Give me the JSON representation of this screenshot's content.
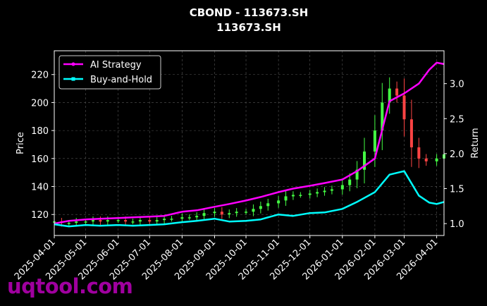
{
  "chart_data": {
    "type": "line",
    "title": "CBOND - 113673.SH",
    "subtitle": "113673.SH",
    "ylabel_left": "Price",
    "ylabel_right": "Return",
    "x_tick_labels": [
      "2025-04-01",
      "2025-05-01",
      "2025-06-01",
      "2025-07-01",
      "2025-08-01",
      "2025-09-01",
      "2025-10-01",
      "2025-11-01",
      "2025-12-01",
      "2026-01-01",
      "2026-02-01",
      "2026-03-01",
      "2026-04-01"
    ],
    "xlim": [
      "2025-04-01",
      "2026-04-08"
    ],
    "ylim_left": [
      105,
      237
    ],
    "yticks_left": [
      120,
      140,
      160,
      180,
      200,
      220
    ],
    "ylim_right": [
      0.83,
      3.47
    ],
    "yticks_right": [
      "1.0",
      "1.5",
      "2.0",
      "2.5",
      "3.0"
    ],
    "grid": true,
    "legend_position": "top-left",
    "colors": {
      "ai": "#ff00ff",
      "bh": "#00ffff",
      "up": "#44ff44",
      "down": "#ff4444",
      "grid": "#555555",
      "watermark": "#a0009f"
    },
    "candles_close": [
      [
        "2025-04-01",
        115
      ],
      [
        "2025-04-08",
        114
      ],
      [
        "2025-04-15",
        114
      ],
      [
        "2025-04-22",
        115
      ],
      [
        "2025-05-01",
        115
      ],
      [
        "2025-05-08",
        116
      ],
      [
        "2025-05-15",
        115
      ],
      [
        "2025-05-22",
        116
      ],
      [
        "2025-06-01",
        116
      ],
      [
        "2025-06-08",
        115
      ],
      [
        "2025-06-15",
        115
      ],
      [
        "2025-06-22",
        116
      ],
      [
        "2025-07-01",
        115
      ],
      [
        "2025-07-08",
        116
      ],
      [
        "2025-07-15",
        117
      ],
      [
        "2025-07-22",
        117
      ],
      [
        "2025-08-01",
        118
      ],
      [
        "2025-08-08",
        118
      ],
      [
        "2025-08-15",
        119
      ],
      [
        "2025-08-22",
        121
      ],
      [
        "2025-09-01",
        122
      ],
      [
        "2025-09-08",
        120
      ],
      [
        "2025-09-15",
        121
      ],
      [
        "2025-09-22",
        122
      ],
      [
        "2025-10-01",
        122
      ],
      [
        "2025-10-08",
        124
      ],
      [
        "2025-10-15",
        126
      ],
      [
        "2025-10-22",
        128
      ],
      [
        "2025-11-01",
        130
      ],
      [
        "2025-11-08",
        133
      ],
      [
        "2025-11-15",
        134
      ],
      [
        "2025-11-22",
        134
      ],
      [
        "2025-12-01",
        135
      ],
      [
        "2025-12-08",
        136
      ],
      [
        "2025-12-15",
        137
      ],
      [
        "2025-12-22",
        138
      ],
      [
        "2026-01-01",
        141
      ],
      [
        "2026-01-08",
        145
      ],
      [
        "2026-01-15",
        152
      ],
      [
        "2026-01-22",
        165
      ],
      [
        "2026-02-01",
        180
      ],
      [
        "2026-02-08",
        200
      ],
      [
        "2026-02-15",
        210
      ],
      [
        "2026-02-22",
        205
      ],
      [
        "2026-03-01",
        188
      ],
      [
        "2026-03-08",
        168
      ],
      [
        "2026-03-15",
        160
      ],
      [
        "2026-03-22",
        158
      ],
      [
        "2026-04-01",
        160
      ],
      [
        "2026-04-08",
        163
      ]
    ],
    "series": [
      {
        "name": "AI Strategy",
        "axis": "right",
        "points": [
          [
            "2025-04-01",
            1.0
          ],
          [
            "2025-04-15",
            1.04
          ],
          [
            "2025-05-01",
            1.06
          ],
          [
            "2025-05-15",
            1.07
          ],
          [
            "2025-06-01",
            1.08
          ],
          [
            "2025-06-15",
            1.09
          ],
          [
            "2025-07-01",
            1.1
          ],
          [
            "2025-07-15",
            1.11
          ],
          [
            "2025-08-01",
            1.17
          ],
          [
            "2025-08-15",
            1.19
          ],
          [
            "2025-09-01",
            1.24
          ],
          [
            "2025-09-15",
            1.28
          ],
          [
            "2025-10-01",
            1.33
          ],
          [
            "2025-10-15",
            1.38
          ],
          [
            "2025-11-01",
            1.45
          ],
          [
            "2025-11-15",
            1.5
          ],
          [
            "2025-12-01",
            1.54
          ],
          [
            "2025-12-15",
            1.58
          ],
          [
            "2026-01-01",
            1.63
          ],
          [
            "2026-01-15",
            1.75
          ],
          [
            "2026-02-01",
            1.93
          ],
          [
            "2026-02-15",
            2.75
          ],
          [
            "2026-03-01",
            2.86
          ],
          [
            "2026-03-15",
            3.0
          ],
          [
            "2026-03-25",
            3.2
          ],
          [
            "2026-04-01",
            3.3
          ],
          [
            "2026-04-08",
            3.28
          ]
        ]
      },
      {
        "name": "Buy-and-Hold",
        "axis": "right",
        "points": [
          [
            "2025-04-01",
            0.99
          ],
          [
            "2025-04-15",
            0.96
          ],
          [
            "2025-05-01",
            0.98
          ],
          [
            "2025-05-15",
            0.97
          ],
          [
            "2025-06-01",
            0.98
          ],
          [
            "2025-06-15",
            0.97
          ],
          [
            "2025-07-01",
            0.98
          ],
          [
            "2025-07-15",
            0.99
          ],
          [
            "2025-08-01",
            1.02
          ],
          [
            "2025-08-15",
            1.04
          ],
          [
            "2025-09-01",
            1.07
          ],
          [
            "2025-09-15",
            1.03
          ],
          [
            "2025-10-01",
            1.04
          ],
          [
            "2025-10-15",
            1.06
          ],
          [
            "2025-11-01",
            1.13
          ],
          [
            "2025-11-15",
            1.11
          ],
          [
            "2025-12-01",
            1.15
          ],
          [
            "2025-12-15",
            1.16
          ],
          [
            "2026-01-01",
            1.21
          ],
          [
            "2026-01-15",
            1.31
          ],
          [
            "2026-02-01",
            1.45
          ],
          [
            "2026-02-15",
            1.7
          ],
          [
            "2026-03-01",
            1.75
          ],
          [
            "2026-03-15",
            1.4
          ],
          [
            "2026-03-25",
            1.3
          ],
          [
            "2026-04-01",
            1.28
          ],
          [
            "2026-04-08",
            1.31
          ]
        ]
      }
    ]
  },
  "watermark": "uqtool.com"
}
